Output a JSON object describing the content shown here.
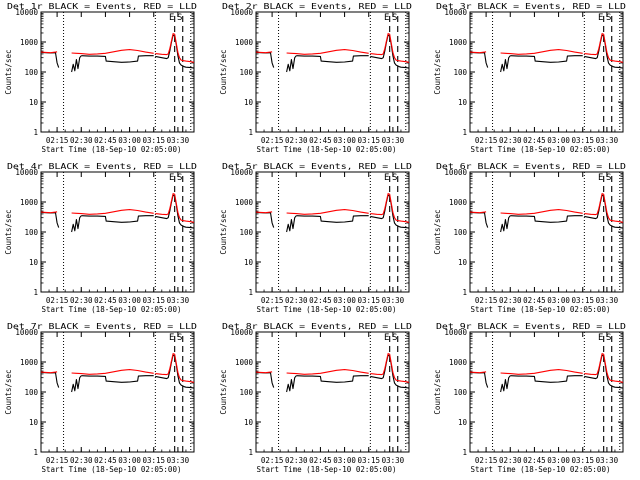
{
  "chart_data": [
    {
      "type": "line",
      "title": "Det 1r BLACK = Events, RED = LLD",
      "xlabel": "Start Time (18-Sep-10 02:05:00)",
      "ylabel": "Counts/sec",
      "yscale": "log",
      "ylim": [
        1,
        10000
      ],
      "xlim_minutes": [
        0,
        95
      ],
      "x_tick_labels": [
        "02:15",
        "02:30",
        "02:45",
        "03:00",
        "03:15",
        "03:30"
      ],
      "x_tick_minutes": [
        10,
        25,
        40,
        55,
        70,
        85
      ],
      "y_tick_labels": [
        "1",
        "10",
        "100",
        "1000",
        "10000"
      ],
      "y_tick_values": [
        1,
        10,
        100,
        1000,
        10000
      ],
      "markers": {
        "left_label": "E",
        "right_label": "S",
        "dotted_minutes": [
          14,
          71,
          93
        ],
        "dashed_minutes": [
          83,
          88
        ]
      },
      "series": [
        {
          "name": "Events",
          "color": "#000000",
          "segments": [
            {
              "x": [
                0,
                3,
                6,
                9,
                10,
                11
              ],
              "y": [
                450,
                440,
                430,
                440,
                200,
                140
              ]
            },
            {
              "x": [
                19,
                20,
                21,
                22,
                23,
                24,
                25
              ],
              "y": [
                100,
                180,
                110,
                260,
                130,
                300,
                350
              ]
            },
            {
              "x": [
                25,
                30,
                35,
                40,
                40.5,
                45,
                50,
                55,
                60,
                60.5,
                65,
                70
              ],
              "y": [
                350,
                340,
                340,
                330,
                230,
                220,
                210,
                215,
                230,
                340,
                350,
                350
              ]
            },
            {
              "x": [
                71,
                75,
                78,
                79,
                80,
                81,
                82,
                83,
                84,
                85,
                86,
                87,
                88,
                89,
                90,
                93,
                95
              ],
              "y": [
                330,
                300,
                280,
                300,
                500,
                1000,
                1700,
                1600,
                800,
                350,
                200,
                170,
                160,
                150,
                145,
                140,
                135
              ]
            }
          ]
        },
        {
          "name": "LLD",
          "color": "#ff0000",
          "segments": [
            {
              "x": [
                0,
                3,
                6,
                9,
                10
              ],
              "y": [
                460,
                450,
                440,
                460,
                470
              ]
            },
            {
              "x": [
                19,
                22,
                25,
                30,
                35,
                40,
                45,
                50,
                55,
                60,
                65,
                70
              ],
              "y": [
                430,
                420,
                410,
                390,
                400,
                420,
                470,
                530,
                560,
                520,
                460,
                420
              ]
            },
            {
              "x": [
                71,
                75,
                78,
                79,
                80,
                81,
                82,
                83,
                84,
                85,
                86,
                87,
                88,
                90,
                93,
                95
              ],
              "y": [
                410,
                390,
                380,
                400,
                600,
                1100,
                1900,
                1800,
                900,
                450,
                300,
                250,
                240,
                230,
                220,
                210
              ]
            }
          ]
        }
      ]
    },
    {
      "type": "line",
      "title": "Det 2r BLACK = Events, RED = LLD",
      "xlabel": "Start Time (18-Sep-10 02:05:00)",
      "ylabel": "Counts/sec",
      "yscale": "log",
      "ylim": [
        1,
        10000
      ],
      "ref": 0
    },
    {
      "type": "line",
      "title": "Det 3r BLACK = Events, RED = LLD",
      "xlabel": "Start Time (18-Sep-10 02:05:00)",
      "ylabel": "Counts/sec",
      "yscale": "log",
      "ylim": [
        1,
        10000
      ],
      "ref": 0
    },
    {
      "type": "line",
      "title": "Det 4r BLACK = Events, RED = LLD",
      "xlabel": "Start Time (18-Sep-10 02:05:00)",
      "ylabel": "Counts/sec",
      "yscale": "log",
      "ylim": [
        1,
        10000
      ],
      "ref": 0
    },
    {
      "type": "line",
      "title": "Det 5r BLACK = Events, RED = LLD",
      "xlabel": "Start Time (18-Sep-10 02:05:00)",
      "ylabel": "Counts/sec",
      "yscale": "log",
      "ylim": [
        1,
        10000
      ],
      "ref": 0
    },
    {
      "type": "line",
      "title": "Det 6r BLACK = Events, RED = LLD",
      "xlabel": "Start Time (18-Sep-10 02:05:00)",
      "ylabel": "Counts/sec",
      "yscale": "log",
      "ylim": [
        1,
        10000
      ],
      "ref": 0
    },
    {
      "type": "line",
      "title": "Det 7r BLACK = Events, RED = LLD",
      "xlabel": "Start Time (18-Sep-10 02:05:00)",
      "ylabel": "Counts/sec",
      "yscale": "log",
      "ylim": [
        1,
        10000
      ],
      "ref": 0
    },
    {
      "type": "line",
      "title": "Det 8r BLACK = Events, RED = LLD",
      "xlabel": "Start Time (18-Sep-10 02:05:00)",
      "ylabel": "Counts/sec",
      "yscale": "log",
      "ylim": [
        1,
        10000
      ],
      "ref": 0
    },
    {
      "type": "line",
      "title": "Det 9r BLACK = Events, RED = LLD",
      "xlabel": "Start Time (18-Sep-10 02:05:00)",
      "ylabel": "Counts/sec",
      "yscale": "log",
      "ylim": [
        1,
        10000
      ],
      "ref": 0
    }
  ]
}
